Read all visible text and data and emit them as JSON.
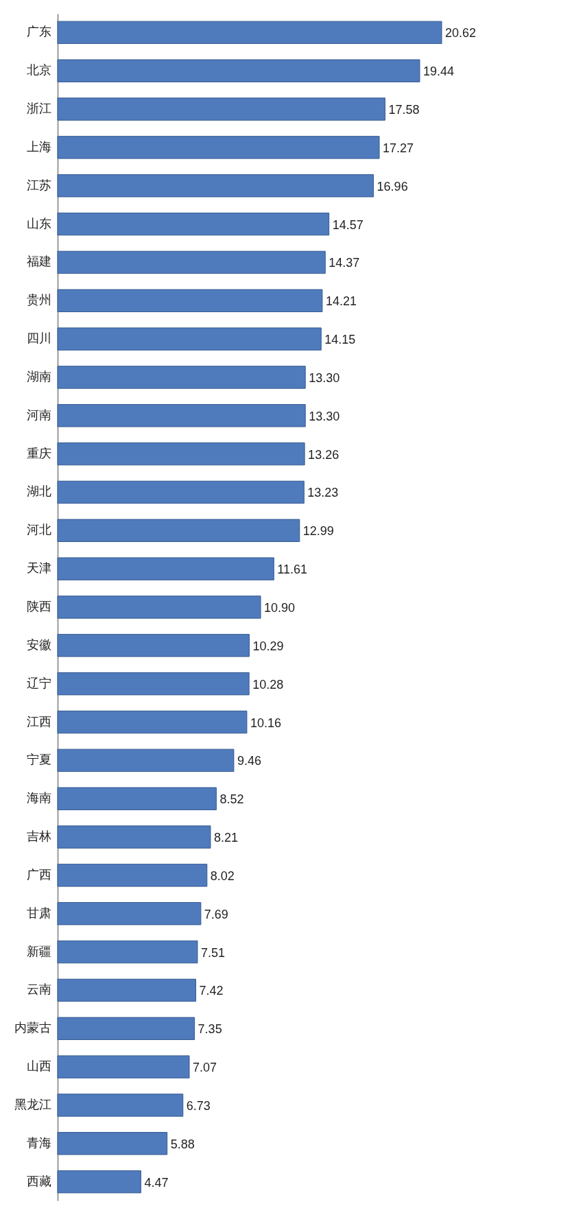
{
  "chart_data": {
    "type": "bar",
    "orientation": "horizontal",
    "tick_labels": "y",
    "categories": [
      "广东",
      "北京",
      "浙江",
      "上海",
      "江苏",
      "山东",
      "福建",
      "贵州",
      "四川",
      "湖南",
      "河南",
      "重庆",
      "湖北",
      "河北",
      "天津",
      "陕西",
      "安徽",
      "辽宁",
      "江西",
      "宁夏",
      "海南",
      "吉林",
      "广西",
      "甘肃",
      "新疆",
      "云南",
      "内蒙古",
      "山西",
      "黑龙江",
      "青海",
      "西藏"
    ],
    "values": [
      20.62,
      19.44,
      17.58,
      17.27,
      16.96,
      14.57,
      14.37,
      14.21,
      14.15,
      13.3,
      13.3,
      13.26,
      13.23,
      12.99,
      11.61,
      10.9,
      10.29,
      10.28,
      10.16,
      9.46,
      8.52,
      8.21,
      8.02,
      7.69,
      7.51,
      7.42,
      7.35,
      7.07,
      6.73,
      5.88,
      4.47
    ],
    "value_labels": [
      "20.62",
      "19.44",
      "17.58",
      "17.27",
      "16.96",
      "14.57",
      "14.37",
      "14.21",
      "14.15",
      "13.30",
      "13.30",
      "13.26",
      "13.23",
      "12.99",
      "11.61",
      "10.90",
      "10.29",
      "10.28",
      "10.16",
      "9.46",
      "8.52",
      "8.21",
      "8.02",
      "7.69",
      "7.51",
      "7.42",
      "7.35",
      "7.07",
      "6.73",
      "5.88",
      "4.47"
    ],
    "color": "#4f7bbd"
  }
}
